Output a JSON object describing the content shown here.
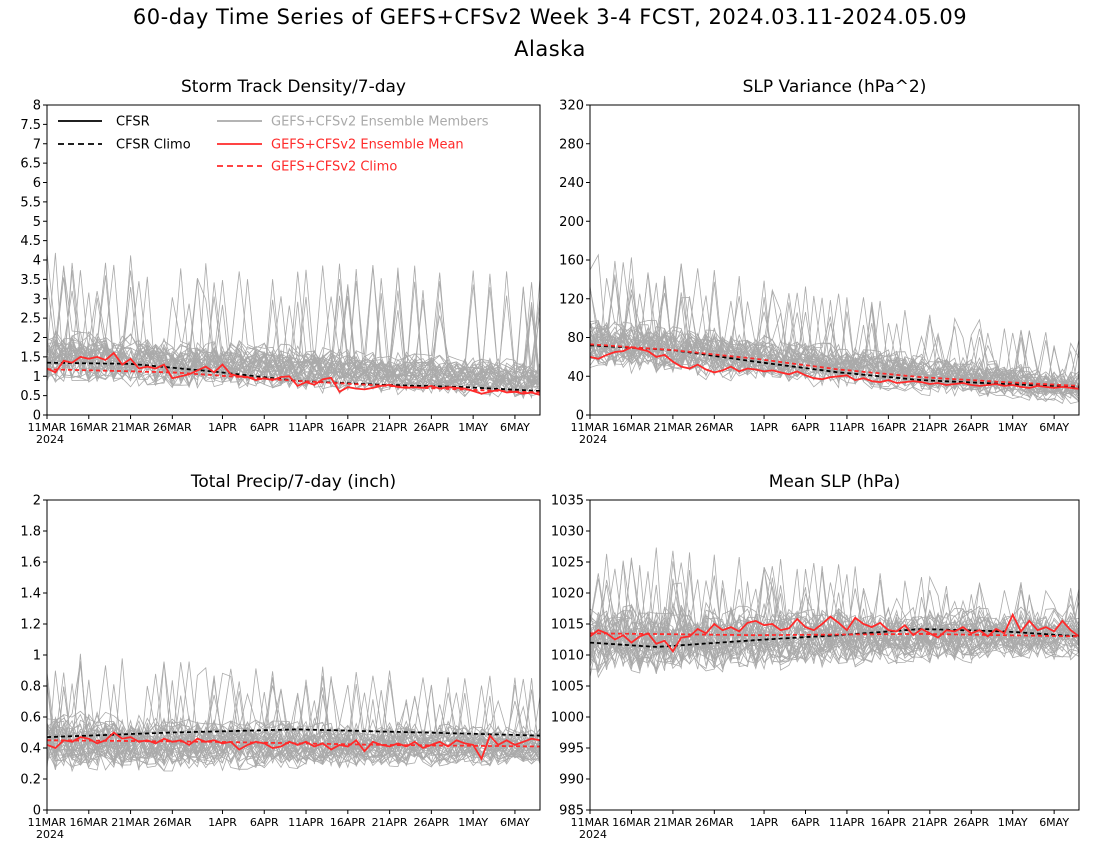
{
  "title_line1": "60-day Time Series of GEFS+CFSv2 Week 3-4 FCST, 2024.03.11-2024.05.09",
  "title_line2": "Alaska",
  "colors": {
    "cfsr": "#000000",
    "members": "#aaaaaa",
    "ens_mean": "#ff2a2a",
    "gefs_climo": "#ff2a2a",
    "legend_members_text": "#aaaaaa",
    "legend_red_text": "#ff2a2a"
  },
  "legend": {
    "cfsr": "CFSR",
    "cfsr_climo": "CFSR Climo",
    "members": "GEFS+CFSv2 Ensemble Members",
    "ens_mean": "GEFS+CFSv2 Ensemble Mean",
    "gefs_climo": "GEFS+CFSv2 Climo"
  },
  "chart_data": [
    {
      "type": "line",
      "title": "Storm Track Density/7-day",
      "x_tick_labels": [
        "11MAR",
        "16MAR",
        "21MAR",
        "26MAR",
        "1APR",
        "6APR",
        "11APR",
        "16APR",
        "21APR",
        "26APR",
        "1MAY",
        "6MAY"
      ],
      "x_year_label": "2024",
      "xlim": [
        0,
        59
      ],
      "ylim": [
        0,
        8
      ],
      "yticks": [
        0,
        0.5,
        1,
        1.5,
        2,
        2.5,
        3,
        3.5,
        4,
        4.5,
        5,
        5.5,
        6,
        6.5,
        7,
        7.5,
        8
      ],
      "ytick_labels": [
        "0",
        "0.5",
        "1",
        "1.5",
        "2",
        "2.5",
        "3",
        "3.5",
        "4",
        "4.5",
        "5",
        "5.5",
        "6",
        "6.5",
        "7",
        "7.5",
        "8"
      ],
      "members": {
        "count": 40,
        "base": [
          1.5,
          0.9
        ],
        "spread": 0.55,
        "spike_max": [
          4.3,
          3.7
        ]
      },
      "series": [
        {
          "name": "CFSR Climo",
          "line": "dash",
          "color": "#000000",
          "anchors": [
            [
              0,
              1.35
            ],
            [
              10,
              1.32
            ],
            [
              20,
              1.12
            ],
            [
              30,
              0.88
            ],
            [
              40,
              0.78
            ],
            [
              50,
              0.72
            ],
            [
              59,
              0.62
            ]
          ]
        },
        {
          "name": "GEFS+CFSv2 Climo",
          "line": "dash",
          "color": "#ff2a2a",
          "anchors": [
            [
              0,
              1.18
            ],
            [
              15,
              1.1
            ],
            [
              30,
              0.88
            ],
            [
              45,
              0.7
            ],
            [
              59,
              0.58
            ]
          ]
        },
        {
          "name": "GEFS+CFSv2 Ensemble Mean",
          "line": "solid",
          "color": "#ff2a2a",
          "values": [
            1.2,
            1.1,
            1.4,
            1.35,
            1.5,
            1.45,
            1.5,
            1.42,
            1.6,
            1.3,
            1.45,
            1.2,
            1.25,
            1.2,
            1.3,
            0.95,
            1.0,
            1.05,
            1.15,
            1.25,
            1.1,
            1.3,
            1.05,
            1.0,
            0.98,
            0.9,
            0.95,
            0.9,
            0.98,
            1.0,
            0.75,
            0.85,
            0.78,
            0.92,
            0.96,
            0.6,
            0.72,
            0.68,
            0.66,
            0.7,
            0.75,
            0.78,
            0.72,
            0.7,
            0.72,
            0.7,
            0.75,
            0.68,
            0.72,
            0.7,
            0.68,
            0.62,
            0.55,
            0.6,
            0.65,
            0.58,
            0.6,
            0.55,
            0.58,
            0.52
          ]
        }
      ]
    },
    {
      "type": "line",
      "title": "SLP Variance (hPa^2)",
      "x_tick_labels": [
        "11MAR",
        "16MAR",
        "21MAR",
        "26MAR",
        "1APR",
        "6APR",
        "11APR",
        "16APR",
        "21APR",
        "26APR",
        "1MAY",
        "6MAY"
      ],
      "x_year_label": "2024",
      "xlim": [
        0,
        59
      ],
      "ylim": [
        0,
        320
      ],
      "yticks": [
        0,
        40,
        80,
        120,
        160,
        200,
        240,
        280,
        320
      ],
      "ytick_labels": [
        "0",
        "40",
        "80",
        "120",
        "160",
        "200",
        "240",
        "280",
        "320"
      ],
      "members": {
        "count": 40,
        "base": [
          75,
          28
        ],
        "spread": 22,
        "spike_max": [
          175,
          80
        ]
      },
      "series": [
        {
          "name": "CFSR Climo",
          "line": "dash",
          "color": "#000000",
          "anchors": [
            [
              0,
              72
            ],
            [
              10,
              67
            ],
            [
              20,
              55
            ],
            [
              30,
              44
            ],
            [
              40,
              36
            ],
            [
              50,
              32
            ],
            [
              59,
              29
            ]
          ]
        },
        {
          "name": "GEFS+CFSv2 Climo",
          "line": "dash",
          "color": "#ff2a2a",
          "anchors": [
            [
              0,
              73
            ],
            [
              10,
              67
            ],
            [
              20,
              58
            ],
            [
              30,
              47
            ],
            [
              40,
              39
            ],
            [
              50,
              34
            ],
            [
              59,
              30
            ]
          ]
        },
        {
          "name": "GEFS+CFSv2 Ensemble Mean",
          "line": "solid",
          "color": "#ff2a2a",
          "values": [
            60,
            58,
            62,
            65,
            66,
            70,
            68,
            66,
            60,
            62,
            55,
            50,
            48,
            52,
            47,
            44,
            46,
            50,
            45,
            48,
            47,
            45,
            46,
            44,
            42,
            45,
            41,
            38,
            37,
            39,
            40,
            41,
            36,
            38,
            35,
            34,
            36,
            33,
            34,
            35,
            34,
            32,
            33,
            31,
            32,
            33,
            31,
            30,
            31,
            32,
            30,
            31,
            29,
            28,
            30,
            29,
            28,
            29,
            28,
            27
          ]
        }
      ]
    },
    {
      "type": "line",
      "title": "Total Precip/7-day (inch)",
      "x_tick_labels": [
        "11MAR",
        "16MAR",
        "21MAR",
        "26MAR",
        "1APR",
        "6APR",
        "11APR",
        "16APR",
        "21APR",
        "26APR",
        "1MAY",
        "6MAY"
      ],
      "x_year_label": "2024",
      "xlim": [
        0,
        59
      ],
      "ylim": [
        0,
        2
      ],
      "yticks": [
        0,
        0.2,
        0.4,
        0.6,
        0.8,
        1,
        1.2,
        1.4,
        1.6,
        1.8,
        2
      ],
      "ytick_labels": [
        "0",
        "0.2",
        "0.4",
        "0.6",
        "0.8",
        "1",
        "1.2",
        "1.4",
        "1.6",
        "1.8",
        "2"
      ],
      "members": {
        "count": 40,
        "base": [
          0.44,
          0.42
        ],
        "spread": 0.15,
        "spike_max": [
          1.02,
          0.85
        ]
      },
      "series": [
        {
          "name": "CFSR Climo",
          "line": "dash",
          "color": "#000000",
          "anchors": [
            [
              0,
              0.47
            ],
            [
              15,
              0.5
            ],
            [
              30,
              0.52
            ],
            [
              45,
              0.5
            ],
            [
              59,
              0.48
            ]
          ]
        },
        {
          "name": "GEFS+CFSv2 Climo",
          "line": "dash",
          "color": "#ff2a2a",
          "anchors": [
            [
              0,
              0.45
            ],
            [
              20,
              0.44
            ],
            [
              40,
              0.42
            ],
            [
              59,
              0.41
            ]
          ]
        },
        {
          "name": "GEFS+CFSv2 Ensemble Mean",
          "line": "solid",
          "color": "#ff2a2a",
          "values": [
            0.42,
            0.4,
            0.45,
            0.44,
            0.47,
            0.46,
            0.43,
            0.45,
            0.5,
            0.46,
            0.47,
            0.44,
            0.45,
            0.43,
            0.46,
            0.44,
            0.45,
            0.42,
            0.46,
            0.44,
            0.45,
            0.43,
            0.44,
            0.39,
            0.42,
            0.44,
            0.43,
            0.4,
            0.41,
            0.44,
            0.42,
            0.44,
            0.41,
            0.43,
            0.39,
            0.42,
            0.41,
            0.45,
            0.38,
            0.44,
            0.42,
            0.41,
            0.43,
            0.41,
            0.44,
            0.4,
            0.42,
            0.44,
            0.41,
            0.45,
            0.43,
            0.42,
            0.33,
            0.48,
            0.42,
            0.45,
            0.42,
            0.44,
            0.46,
            0.45
          ]
        }
      ]
    },
    {
      "type": "line",
      "title": "Mean SLP (hPa)",
      "x_tick_labels": [
        "11MAR",
        "16MAR",
        "21MAR",
        "26MAR",
        "1APR",
        "6APR",
        "11APR",
        "16APR",
        "21APR",
        "26APR",
        "1MAY",
        "6MAY"
      ],
      "x_year_label": "2024",
      "xlim": [
        0,
        59
      ],
      "ylim": [
        985,
        1035
      ],
      "yticks": [
        985,
        990,
        995,
        1000,
        1005,
        1010,
        1015,
        1020,
        1025,
        1030,
        1035
      ],
      "ytick_labels": [
        "985",
        "990",
        "995",
        "1000",
        "1005",
        "1010",
        "1015",
        "1020",
        "1025",
        "1030",
        "1035"
      ],
      "members": {
        "count": 40,
        "base": [
          1012.5,
          1013.5
        ],
        "spread": 4.5,
        "spike_max": [
          1028.5,
          1021
        ]
      },
      "series": [
        {
          "name": "CFSR Climo",
          "line": "dash",
          "color": "#000000",
          "anchors": [
            [
              0,
              1012
            ],
            [
              8,
              1011.3
            ],
            [
              20,
              1012.4
            ],
            [
              30,
              1013.2
            ],
            [
              40,
              1014.2
            ],
            [
              50,
              1013.8
            ],
            [
              59,
              1013
            ]
          ]
        },
        {
          "name": "GEFS+CFSv2 Climo",
          "line": "dash",
          "color": "#ff2a2a",
          "anchors": [
            [
              0,
              1013.5
            ],
            [
              20,
              1013.2
            ],
            [
              40,
              1013.4
            ],
            [
              59,
              1013
            ]
          ]
        },
        {
          "name": "GEFS+CFSv2 Ensemble Mean",
          "line": "solid",
          "color": "#ff2a2a",
          "values": [
            1013,
            1014,
            1013.5,
            1012.5,
            1013.2,
            1012,
            1013,
            1013.5,
            1011.8,
            1012.3,
            1010.6,
            1012.8,
            1013,
            1014.2,
            1013.5,
            1015,
            1014,
            1014.5,
            1013.8,
            1015.2,
            1015.5,
            1014.8,
            1015,
            1014,
            1014.3,
            1015.8,
            1014.5,
            1014,
            1015,
            1016.2,
            1015.2,
            1014,
            1016,
            1015,
            1014.5,
            1015.2,
            1014,
            1013.8,
            1014.8,
            1013.2,
            1014.2,
            1013.5,
            1012.8,
            1014,
            1013.8,
            1014.5,
            1013.5,
            1014,
            1013,
            1014.2,
            1013.5,
            1016.5,
            1013.8,
            1015.5,
            1014,
            1014.5,
            1013.8,
            1015.5,
            1014,
            1013
          ]
        }
      ]
    }
  ]
}
